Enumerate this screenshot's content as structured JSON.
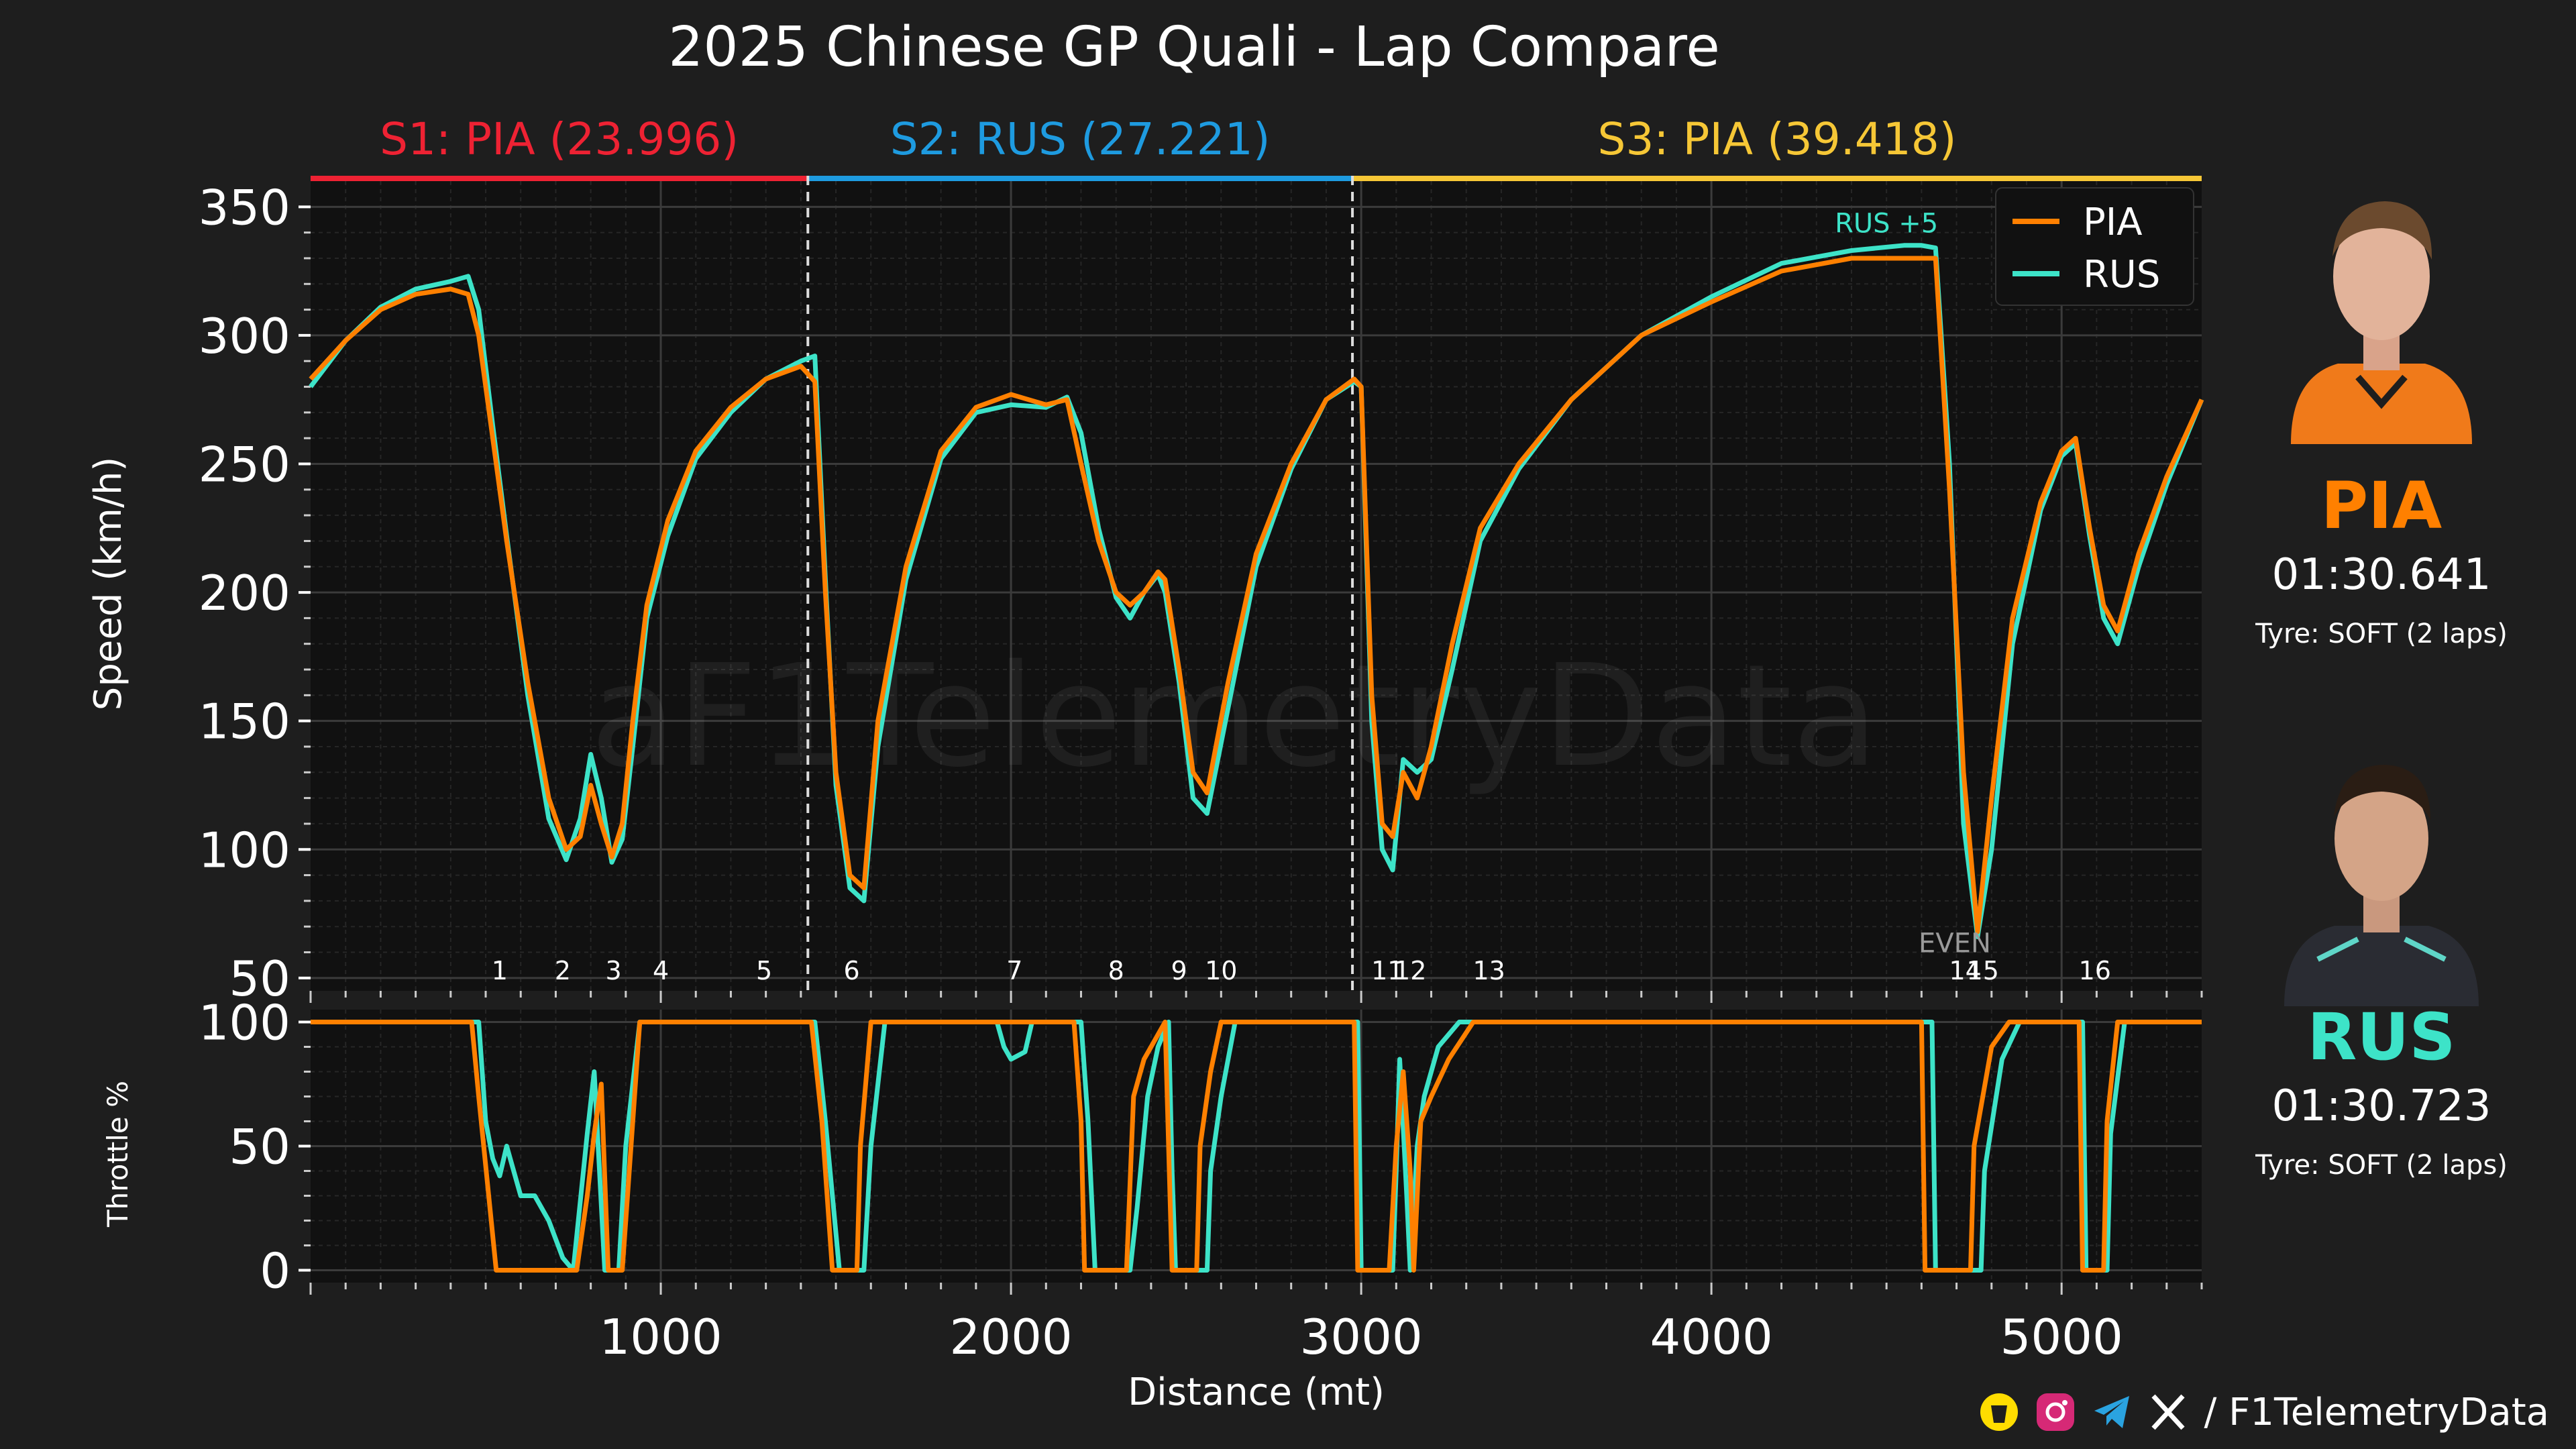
{
  "title": "2025 Chinese GP Quali - Lap Compare",
  "watermark": "aF1TelemetryData",
  "sectors": [
    {
      "label": "S1: PIA (23.996)",
      "color": "#ee2233",
      "start": 0,
      "end": 1420
    },
    {
      "label": "S2: RUS (27.221)",
      "color": "#1e9be0",
      "start": 1420,
      "end": 2975
    },
    {
      "label": "S3: PIA (39.418)",
      "color": "#f6c736",
      "start": 2975,
      "end": 5400
    }
  ],
  "corners": [
    {
      "label": "1",
      "x": 540
    },
    {
      "label": "2",
      "x": 720
    },
    {
      "label": "3",
      "x": 865
    },
    {
      "label": "4",
      "x": 1000
    },
    {
      "label": "5",
      "x": 1295
    },
    {
      "label": "6",
      "x": 1545
    },
    {
      "label": "7",
      "x": 2010
    },
    {
      "label": "8",
      "x": 2300
    },
    {
      "label": "9",
      "x": 2480
    },
    {
      "label": "10",
      "x": 2600
    },
    {
      "label": "11",
      "x": 3075
    },
    {
      "label": "12",
      "x": 3140
    },
    {
      "label": "13",
      "x": 3365
    },
    {
      "label": "14",
      "x": 4725
    },
    {
      "label": "15",
      "x": 4775
    },
    {
      "label": "16",
      "x": 5095
    }
  ],
  "annotations": [
    {
      "text": "RUS +5",
      "x": 4500,
      "y": 340,
      "color": "#3de3c8"
    },
    {
      "text": "EVEN",
      "x": 4695,
      "y": 60,
      "color": "#9a9a9a"
    }
  ],
  "chart_data": [
    {
      "type": "line",
      "ylabel": "Speed (km/h)",
      "xlim": [
        0,
        5400
      ],
      "ylim": [
        45,
        360
      ],
      "yticks": [
        50,
        100,
        150,
        200,
        250,
        300,
        350
      ],
      "legend": "top-right",
      "grid": true,
      "series": [
        {
          "name": "PIA",
          "color": "#ff8000",
          "x": [
            0,
            100,
            200,
            300,
            400,
            450,
            480,
            520,
            560,
            620,
            680,
            730,
            770,
            800,
            830,
            860,
            890,
            920,
            960,
            1020,
            1100,
            1200,
            1300,
            1400,
            1440,
            1470,
            1500,
            1540,
            1580,
            1620,
            1700,
            1800,
            1900,
            2000,
            2100,
            2160,
            2200,
            2250,
            2300,
            2340,
            2380,
            2420,
            2440,
            2480,
            2520,
            2560,
            2620,
            2700,
            2800,
            2900,
            2980,
            3000,
            3030,
            3060,
            3090,
            3120,
            3160,
            3200,
            3260,
            3340,
            3450,
            3600,
            3800,
            4000,
            4200,
            4400,
            4550,
            4600,
            4640,
            4680,
            4720,
            4760,
            4800,
            4860,
            4940,
            5000,
            5040,
            5080,
            5120,
            5160,
            5220,
            5300,
            5400
          ],
          "y": [
            283,
            298,
            310,
            316,
            318,
            316,
            300,
            260,
            220,
            165,
            120,
            100,
            105,
            125,
            110,
            97,
            110,
            150,
            195,
            228,
            255,
            272,
            283,
            288,
            282,
            200,
            130,
            90,
            85,
            150,
            210,
            255,
            272,
            277,
            273,
            275,
            250,
            220,
            200,
            195,
            200,
            208,
            205,
            170,
            130,
            122,
            165,
            215,
            250,
            275,
            283,
            280,
            160,
            110,
            105,
            130,
            120,
            140,
            180,
            225,
            250,
            275,
            300,
            313,
            325,
            330,
            330,
            330,
            330,
            240,
            130,
            68,
            120,
            190,
            235,
            255,
            260,
            225,
            195,
            185,
            215,
            245,
            275
          ]
        },
        {
          "name": "RUS",
          "color": "#3de3c8",
          "x": [
            0,
            100,
            200,
            300,
            400,
            450,
            480,
            520,
            560,
            620,
            680,
            730,
            770,
            800,
            830,
            860,
            890,
            920,
            960,
            1020,
            1100,
            1200,
            1300,
            1400,
            1440,
            1470,
            1500,
            1540,
            1580,
            1620,
            1700,
            1800,
            1900,
            2000,
            2100,
            2160,
            2200,
            2250,
            2300,
            2340,
            2380,
            2420,
            2440,
            2480,
            2520,
            2560,
            2620,
            2700,
            2800,
            2900,
            2980,
            3000,
            3030,
            3060,
            3090,
            3120,
            3160,
            3200,
            3260,
            3340,
            3450,
            3600,
            3800,
            4000,
            4200,
            4400,
            4550,
            4600,
            4640,
            4680,
            4720,
            4760,
            4800,
            4860,
            4940,
            5000,
            5040,
            5080,
            5120,
            5160,
            5220,
            5300,
            5400
          ],
          "y": [
            280,
            298,
            311,
            318,
            321,
            323,
            310,
            265,
            222,
            160,
            112,
            96,
            112,
            137,
            120,
            95,
            104,
            140,
            190,
            222,
            252,
            270,
            283,
            290,
            292,
            205,
            125,
            85,
            80,
            140,
            205,
            252,
            270,
            273,
            272,
            276,
            262,
            225,
            198,
            190,
            200,
            207,
            200,
            165,
            120,
            114,
            155,
            210,
            248,
            275,
            282,
            280,
            150,
            100,
            92,
            135,
            130,
            135,
            170,
            220,
            248,
            275,
            300,
            315,
            328,
            333,
            335,
            335,
            334,
            250,
            110,
            66,
            100,
            180,
            232,
            253,
            258,
            222,
            190,
            180,
            210,
            242,
            275
          ]
        }
      ]
    },
    {
      "type": "line",
      "ylabel": "Throttle %",
      "xlabel": "Distance (mt)",
      "xlim": [
        0,
        5400
      ],
      "ylim": [
        -5,
        105
      ],
      "yticks": [
        0,
        50,
        100
      ],
      "xticks": [
        1000,
        2000,
        3000,
        4000,
        5000
      ],
      "grid": true,
      "series": [
        {
          "name": "PIA",
          "color": "#ff8000",
          "x": [
            0,
            460,
            480,
            530,
            760,
            790,
            810,
            830,
            850,
            870,
            890,
            920,
            940,
            1000,
            1430,
            1460,
            1490,
            1500,
            1560,
            1570,
            1600,
            1650,
            2180,
            2200,
            2210,
            2330,
            2350,
            2380,
            2400,
            2440,
            2450,
            2460,
            2530,
            2540,
            2570,
            2600,
            2650,
            2980,
            2990,
            3080,
            3100,
            3120,
            3140,
            3150,
            3170,
            3200,
            3250,
            3320,
            3400,
            4600,
            4610,
            4740,
            4750,
            4800,
            4850,
            5050,
            5060,
            5120,
            5130,
            5160,
            5400
          ],
          "y": [
            100,
            100,
            70,
            0,
            0,
            30,
            55,
            75,
            0,
            0,
            0,
            60,
            100,
            100,
            100,
            60,
            0,
            0,
            0,
            50,
            100,
            100,
            100,
            60,
            0,
            0,
            70,
            85,
            90,
            100,
            50,
            0,
            0,
            50,
            80,
            100,
            100,
            100,
            0,
            0,
            50,
            80,
            40,
            0,
            60,
            70,
            85,
            100,
            100,
            100,
            0,
            0,
            50,
            90,
            100,
            100,
            0,
            0,
            60,
            100,
            100
          ]
        },
        {
          "name": "RUS",
          "color": "#3de3c8",
          "x": [
            0,
            480,
            500,
            520,
            540,
            560,
            600,
            640,
            680,
            720,
            750,
            790,
            810,
            840,
            860,
            880,
            900,
            940,
            1000,
            1440,
            1470,
            1510,
            1580,
            1600,
            1640,
            1700,
            1960,
            1980,
            2000,
            2040,
            2060,
            2200,
            2220,
            2240,
            2340,
            2360,
            2390,
            2420,
            2450,
            2460,
            2470,
            2560,
            2570,
            2600,
            2640,
            2990,
            3000,
            3090,
            3100,
            3110,
            3130,
            3140,
            3160,
            3180,
            3220,
            3280,
            3360,
            3400,
            4630,
            4640,
            4770,
            4780,
            4830,
            4880,
            5060,
            5070,
            5130,
            5140,
            5180,
            5400
          ],
          "y": [
            100,
            100,
            60,
            45,
            38,
            50,
            30,
            30,
            20,
            5,
            0,
            55,
            80,
            0,
            0,
            0,
            50,
            100,
            100,
            100,
            60,
            0,
            0,
            50,
            100,
            100,
            100,
            90,
            85,
            88,
            100,
            100,
            60,
            0,
            0,
            25,
            70,
            90,
            100,
            40,
            0,
            0,
            40,
            70,
            100,
            100,
            0,
            0,
            40,
            85,
            30,
            0,
            50,
            70,
            90,
            100,
            100,
            100,
            100,
            0,
            0,
            40,
            85,
            100,
            100,
            0,
            0,
            55,
            100,
            100
          ]
        }
      ]
    }
  ],
  "drivers": [
    {
      "code": "PIA",
      "time": "01:30.641",
      "tyre": "Tyre: SOFT (2 laps)",
      "color": "#ff8000",
      "suit": "#f07a1a"
    },
    {
      "code": "RUS",
      "time": "01:30.723",
      "tyre": "Tyre: SOFT (2 laps)",
      "color": "#3de3c8",
      "suit": "#2a2c33"
    }
  ],
  "footer": {
    "handle": "/ F1TelemetryData"
  },
  "icons": [
    "coffee-icon",
    "instagram-icon",
    "telegram-icon",
    "x-icon"
  ]
}
